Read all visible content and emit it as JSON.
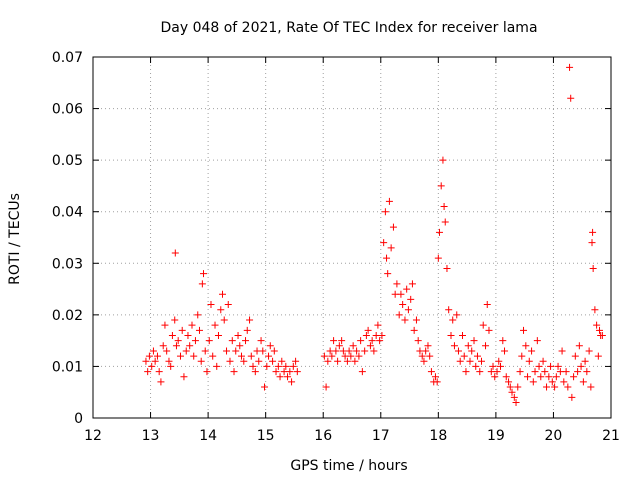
{
  "chart_data": {
    "type": "scatter",
    "title": "Day 048 of 2021, Rate Of TEC Index for receiver lama",
    "xlabel": "GPS time / hours",
    "ylabel": "ROTI / TECUs",
    "xlim": [
      12,
      21
    ],
    "ylim": [
      0,
      0.07
    ],
    "x_ticks": [
      "12",
      "13",
      "14",
      "15",
      "16",
      "17",
      "18",
      "19",
      "20",
      "21"
    ],
    "y_ticks": [
      "0",
      "0.01",
      "0.02",
      "0.03",
      "0.04",
      "0.05",
      "0.06",
      "0.07"
    ],
    "grid": true,
    "marker": "+",
    "color": "#ff0000",
    "series": [
      {
        "name": "ROTI",
        "points": [
          [
            12.92,
            0.011
          ],
          [
            12.95,
            0.009
          ],
          [
            12.98,
            0.012
          ],
          [
            13.02,
            0.01
          ],
          [
            13.05,
            0.013
          ],
          [
            13.08,
            0.011
          ],
          [
            13.12,
            0.012
          ],
          [
            13.15,
            0.009
          ],
          [
            13.18,
            0.007
          ],
          [
            13.22,
            0.014
          ],
          [
            13.25,
            0.018
          ],
          [
            13.28,
            0.013
          ],
          [
            13.32,
            0.011
          ],
          [
            13.35,
            0.01
          ],
          [
            13.38,
            0.016
          ],
          [
            13.42,
            0.019
          ],
          [
            13.43,
            0.032
          ],
          [
            13.45,
            0.014
          ],
          [
            13.48,
            0.015
          ],
          [
            13.52,
            0.012
          ],
          [
            13.55,
            0.017
          ],
          [
            13.58,
            0.008
          ],
          [
            13.62,
            0.013
          ],
          [
            13.65,
            0.016
          ],
          [
            13.68,
            0.014
          ],
          [
            13.72,
            0.018
          ],
          [
            13.75,
            0.012
          ],
          [
            13.78,
            0.015
          ],
          [
            13.82,
            0.02
          ],
          [
            13.85,
            0.017
          ],
          [
            13.88,
            0.011
          ],
          [
            13.9,
            0.026
          ],
          [
            13.92,
            0.028
          ],
          [
            13.95,
            0.013
          ],
          [
            13.98,
            0.009
          ],
          [
            14.02,
            0.015
          ],
          [
            14.05,
            0.022
          ],
          [
            14.08,
            0.012
          ],
          [
            14.12,
            0.018
          ],
          [
            14.15,
            0.01
          ],
          [
            14.18,
            0.016
          ],
          [
            14.22,
            0.021
          ],
          [
            14.25,
            0.024
          ],
          [
            14.28,
            0.019
          ],
          [
            14.32,
            0.013
          ],
          [
            14.35,
            0.022
          ],
          [
            14.38,
            0.011
          ],
          [
            14.42,
            0.015
          ],
          [
            14.45,
            0.009
          ],
          [
            14.48,
            0.013
          ],
          [
            14.52,
            0.016
          ],
          [
            14.55,
            0.014
          ],
          [
            14.58,
            0.012
          ],
          [
            14.62,
            0.011
          ],
          [
            14.65,
            0.015
          ],
          [
            14.68,
            0.017
          ],
          [
            14.72,
            0.019
          ],
          [
            14.75,
            0.012
          ],
          [
            14.78,
            0.01
          ],
          [
            14.82,
            0.009
          ],
          [
            14.85,
            0.013
          ],
          [
            14.88,
            0.011
          ],
          [
            14.92,
            0.015
          ],
          [
            14.95,
            0.013
          ],
          [
            14.98,
            0.006
          ],
          [
            15.02,
            0.01
          ],
          [
            15.05,
            0.012
          ],
          [
            15.08,
            0.014
          ],
          [
            15.12,
            0.011
          ],
          [
            15.15,
            0.013
          ],
          [
            15.18,
            0.009
          ],
          [
            15.22,
            0.01
          ],
          [
            15.25,
            0.008
          ],
          [
            15.28,
            0.011
          ],
          [
            15.32,
            0.009
          ],
          [
            15.35,
            0.01
          ],
          [
            15.38,
            0.008
          ],
          [
            15.42,
            0.009
          ],
          [
            15.45,
            0.007
          ],
          [
            15.48,
            0.01
          ],
          [
            15.52,
            0.011
          ],
          [
            15.55,
            0.009
          ],
          [
            16.02,
            0.012
          ],
          [
            16.05,
            0.006
          ],
          [
            16.08,
            0.011
          ],
          [
            16.12,
            0.013
          ],
          [
            16.15,
            0.012
          ],
          [
            16.18,
            0.015
          ],
          [
            16.22,
            0.013
          ],
          [
            16.25,
            0.011
          ],
          [
            16.28,
            0.014
          ],
          [
            16.32,
            0.015
          ],
          [
            16.35,
            0.013
          ],
          [
            16.38,
            0.012
          ],
          [
            16.42,
            0.011
          ],
          [
            16.45,
            0.013
          ],
          [
            16.48,
            0.012
          ],
          [
            16.52,
            0.014
          ],
          [
            16.55,
            0.011
          ],
          [
            16.58,
            0.013
          ],
          [
            16.62,
            0.012
          ],
          [
            16.65,
            0.015
          ],
          [
            16.68,
            0.009
          ],
          [
            16.72,
            0.013
          ],
          [
            16.75,
            0.016
          ],
          [
            16.78,
            0.017
          ],
          [
            16.82,
            0.014
          ],
          [
            16.85,
            0.015
          ],
          [
            16.88,
            0.013
          ],
          [
            16.92,
            0.016
          ],
          [
            16.95,
            0.018
          ],
          [
            16.98,
            0.015
          ],
          [
            17.02,
            0.016
          ],
          [
            17.05,
            0.034
          ],
          [
            17.08,
            0.04
          ],
          [
            17.1,
            0.031
          ],
          [
            17.12,
            0.028
          ],
          [
            17.15,
            0.042
          ],
          [
            17.18,
            0.033
          ],
          [
            17.22,
            0.037
          ],
          [
            17.25,
            0.024
          ],
          [
            17.28,
            0.026
          ],
          [
            17.32,
            0.02
          ],
          [
            17.35,
            0.024
          ],
          [
            17.38,
            0.022
          ],
          [
            17.42,
            0.019
          ],
          [
            17.45,
            0.025
          ],
          [
            17.48,
            0.021
          ],
          [
            17.52,
            0.023
          ],
          [
            17.55,
            0.026
          ],
          [
            17.58,
            0.017
          ],
          [
            17.62,
            0.019
          ],
          [
            17.65,
            0.015
          ],
          [
            17.68,
            0.013
          ],
          [
            17.72,
            0.012
          ],
          [
            17.75,
            0.011
          ],
          [
            17.78,
            0.013
          ],
          [
            17.82,
            0.014
          ],
          [
            17.85,
            0.012
          ],
          [
            17.88,
            0.009
          ],
          [
            17.92,
            0.007
          ],
          [
            17.95,
            0.008
          ],
          [
            17.98,
            0.007
          ],
          [
            18.0,
            0.031
          ],
          [
            18.02,
            0.036
          ],
          [
            18.05,
            0.045
          ],
          [
            18.08,
            0.05
          ],
          [
            18.1,
            0.041
          ],
          [
            18.12,
            0.038
          ],
          [
            18.15,
            0.029
          ],
          [
            18.18,
            0.021
          ],
          [
            18.22,
            0.016
          ],
          [
            18.25,
            0.019
          ],
          [
            18.28,
            0.014
          ],
          [
            18.32,
            0.02
          ],
          [
            18.35,
            0.013
          ],
          [
            18.38,
            0.011
          ],
          [
            18.42,
            0.016
          ],
          [
            18.45,
            0.012
          ],
          [
            18.48,
            0.009
          ],
          [
            18.52,
            0.014
          ],
          [
            18.55,
            0.011
          ],
          [
            18.58,
            0.013
          ],
          [
            18.62,
            0.015
          ],
          [
            18.65,
            0.01
          ],
          [
            18.68,
            0.012
          ],
          [
            18.72,
            0.009
          ],
          [
            18.75,
            0.011
          ],
          [
            18.78,
            0.018
          ],
          [
            18.82,
            0.014
          ],
          [
            18.85,
            0.022
          ],
          [
            18.88,
            0.017
          ],
          [
            18.92,
            0.009
          ],
          [
            18.95,
            0.01
          ],
          [
            18.98,
            0.008
          ],
          [
            19.02,
            0.009
          ],
          [
            19.05,
            0.011
          ],
          [
            19.08,
            0.01
          ],
          [
            19.12,
            0.015
          ],
          [
            19.15,
            0.013
          ],
          [
            19.18,
            0.008
          ],
          [
            19.22,
            0.007
          ],
          [
            19.25,
            0.006
          ],
          [
            19.28,
            0.005
          ],
          [
            19.32,
            0.004
          ],
          [
            19.35,
            0.003
          ],
          [
            19.38,
            0.006
          ],
          [
            19.42,
            0.009
          ],
          [
            19.45,
            0.012
          ],
          [
            19.48,
            0.017
          ],
          [
            19.52,
            0.014
          ],
          [
            19.55,
            0.008
          ],
          [
            19.58,
            0.011
          ],
          [
            19.62,
            0.013
          ],
          [
            19.65,
            0.007
          ],
          [
            19.68,
            0.009
          ],
          [
            19.72,
            0.015
          ],
          [
            19.75,
            0.01
          ],
          [
            19.78,
            0.008
          ],
          [
            19.82,
            0.011
          ],
          [
            19.85,
            0.009
          ],
          [
            19.88,
            0.006
          ],
          [
            19.92,
            0.008
          ],
          [
            19.95,
            0.01
          ],
          [
            19.98,
            0.007
          ],
          [
            20.02,
            0.006
          ],
          [
            20.05,
            0.008
          ],
          [
            20.08,
            0.01
          ],
          [
            20.12,
            0.009
          ],
          [
            20.15,
            0.013
          ],
          [
            20.18,
            0.007
          ],
          [
            20.22,
            0.009
          ],
          [
            20.25,
            0.006
          ],
          [
            20.28,
            0.068
          ],
          [
            20.3,
            0.062
          ],
          [
            20.32,
            0.004
          ],
          [
            20.35,
            0.008
          ],
          [
            20.38,
            0.012
          ],
          [
            20.42,
            0.009
          ],
          [
            20.45,
            0.014
          ],
          [
            20.48,
            0.01
          ],
          [
            20.52,
            0.007
          ],
          [
            20.55,
            0.011
          ],
          [
            20.58,
            0.009
          ],
          [
            20.62,
            0.013
          ],
          [
            20.65,
            0.006
          ],
          [
            20.67,
            0.034
          ],
          [
            20.68,
            0.036
          ],
          [
            20.69,
            0.029
          ],
          [
            20.72,
            0.021
          ],
          [
            20.75,
            0.018
          ],
          [
            20.78,
            0.012
          ],
          [
            20.8,
            0.017
          ],
          [
            20.82,
            0.016
          ],
          [
            20.85,
            0.016
          ]
        ]
      }
    ]
  }
}
